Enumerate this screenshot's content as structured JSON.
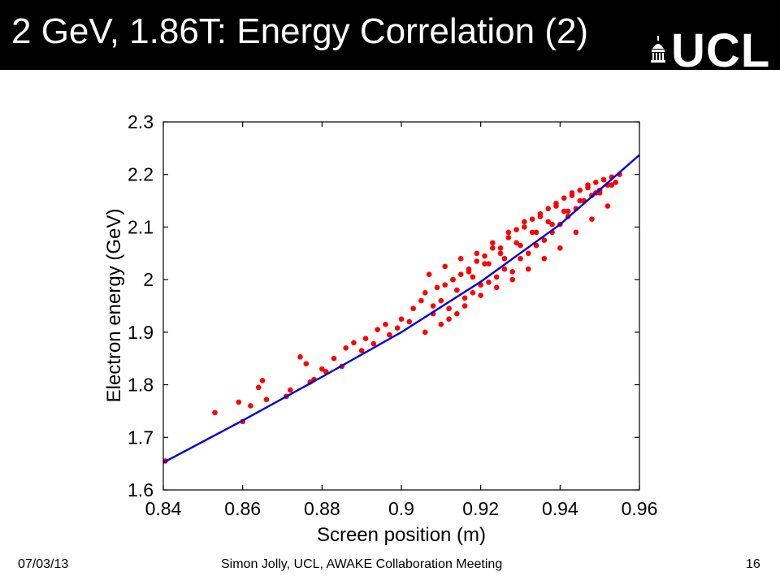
{
  "slide": {
    "title": "2 GeV, 1.86T: Energy Correlation (2)",
    "logo_text": "UCL",
    "logo_icon": "ucl-dome-icon",
    "title_bar_color": "#000000"
  },
  "footer": {
    "date": "07/03/13",
    "center": "Simon Jolly, UCL, AWAKE Collaboration Meeting",
    "page": "16"
  },
  "chart_data": {
    "type": "scatter",
    "xlabel": "Screen position (m)",
    "ylabel": "Electron energy (GeV)",
    "xlim": [
      0.84,
      0.96
    ],
    "ylim": [
      1.6,
      2.3
    ],
    "xticks": [
      "0.84",
      "0.86",
      "0.88",
      "0.9",
      "0.92",
      "0.94",
      "0.96"
    ],
    "yticks": [
      "1.6",
      "1.7",
      "1.8",
      "1.9",
      "2",
      "2.1",
      "2.2",
      "2.3"
    ],
    "grid": false,
    "series": [
      {
        "kind": "points",
        "color": "#ff0000",
        "x": [
          0.8405,
          0.853,
          0.859,
          0.86,
          0.862,
          0.864,
          0.865,
          0.866,
          0.871,
          0.872,
          0.8745,
          0.876,
          0.877,
          0.878,
          0.88,
          0.881,
          0.883,
          0.885,
          0.886,
          0.888,
          0.89,
          0.891,
          0.893,
          0.894,
          0.896,
          0.897,
          0.899,
          0.9,
          0.902,
          0.903,
          0.905,
          0.906,
          0.908,
          0.909,
          0.91,
          0.911,
          0.912,
          0.913,
          0.914,
          0.915,
          0.916,
          0.917,
          0.918,
          0.919,
          0.92,
          0.921,
          0.922,
          0.923,
          0.924,
          0.925,
          0.926,
          0.927,
          0.928,
          0.929,
          0.93,
          0.931,
          0.932,
          0.933,
          0.934,
          0.935,
          0.936,
          0.937,
          0.938,
          0.939,
          0.94,
          0.941,
          0.942,
          0.943,
          0.944,
          0.945,
          0.946,
          0.947,
          0.948,
          0.949,
          0.95,
          0.951,
          0.952,
          0.953,
          0.954,
          0.955,
          0.906,
          0.91,
          0.914,
          0.918,
          0.922,
          0.926,
          0.93,
          0.934,
          0.938,
          0.942,
          0.946,
          0.95,
          0.908,
          0.912,
          0.916,
          0.92,
          0.924,
          0.928,
          0.932,
          0.936,
          0.94,
          0.944,
          0.948,
          0.952,
          0.907,
          0.911,
          0.915,
          0.919,
          0.923,
          0.927,
          0.931,
          0.935,
          0.939,
          0.943,
          0.947,
          0.951,
          0.913,
          0.917,
          0.921,
          0.925,
          0.929,
          0.933,
          0.937,
          0.941,
          0.945,
          0.949,
          0.953
        ],
        "y": [
          1.655,
          1.747,
          1.767,
          1.73,
          1.76,
          1.795,
          1.808,
          1.772,
          1.778,
          1.79,
          1.853,
          1.84,
          1.805,
          1.81,
          1.83,
          1.825,
          1.85,
          1.835,
          1.87,
          1.88,
          1.865,
          1.888,
          1.878,
          1.905,
          1.915,
          1.895,
          1.908,
          1.925,
          1.92,
          1.945,
          1.96,
          1.9,
          1.95,
          1.985,
          1.915,
          1.99,
          1.945,
          2.0,
          1.935,
          2.01,
          1.965,
          2.02,
          1.975,
          2.035,
          1.99,
          2.045,
          1.995,
          2.06,
          2.005,
          2.06,
          2.02,
          2.08,
          2.015,
          2.095,
          2.04,
          2.1,
          2.05,
          2.115,
          2.065,
          2.12,
          2.075,
          2.135,
          2.09,
          2.14,
          2.105,
          2.155,
          2.12,
          2.165,
          2.135,
          2.17,
          2.15,
          2.18,
          2.16,
          2.185,
          2.17,
          2.19,
          2.18,
          2.195,
          2.185,
          2.2,
          1.975,
          1.96,
          1.98,
          2.005,
          2.03,
          2.04,
          2.065,
          2.09,
          2.105,
          2.13,
          2.15,
          2.165,
          1.935,
          1.925,
          1.95,
          1.97,
          1.985,
          2.0,
          2.02,
          2.04,
          2.06,
          2.09,
          2.115,
          2.14,
          2.01,
          2.025,
          2.04,
          2.05,
          2.07,
          2.09,
          2.11,
          2.125,
          2.145,
          2.16,
          2.175,
          2.19,
          2.0,
          2.015,
          2.03,
          2.05,
          2.07,
          2.09,
          2.11,
          2.13,
          2.15,
          2.165,
          2.18
        ]
      },
      {
        "kind": "fit-line",
        "color": "#0000dd",
        "x": [
          0.84,
          0.86,
          0.88,
          0.9,
          0.92,
          0.94,
          0.96
        ],
        "y": [
          1.652,
          1.732,
          1.815,
          1.9,
          1.996,
          2.105,
          2.237
        ]
      }
    ]
  }
}
